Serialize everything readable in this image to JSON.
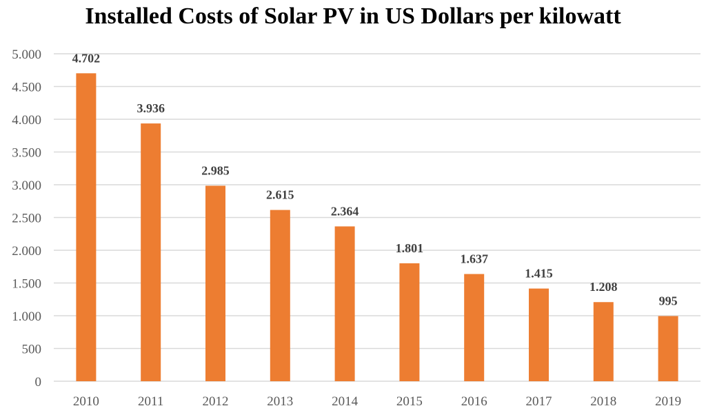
{
  "chart_data": {
    "type": "bar",
    "title": "Installed Costs of Solar PV in US Dollars per kilowatt",
    "categories": [
      "2010",
      "2011",
      "2012",
      "2013",
      "2014",
      "2015",
      "2016",
      "2017",
      "2018",
      "2019"
    ],
    "values": [
      4702,
      3936,
      2985,
      2615,
      2364,
      1801,
      1637,
      1415,
      1208,
      995
    ],
    "data_labels": [
      "4.702",
      "3.936",
      "2.985",
      "2.615",
      "2.364",
      "1.801",
      "1.637",
      "1.415",
      "1.208",
      "995"
    ],
    "yticks": [
      0,
      500,
      1000,
      1500,
      2000,
      2500,
      3000,
      3500,
      4000,
      4500,
      5000
    ],
    "ytick_labels": [
      "0",
      "500",
      "1.000",
      "1.500",
      "2.000",
      "2.500",
      "3.000",
      "3.500",
      "4.000",
      "4.500",
      "5.000"
    ],
    "xlabel": "",
    "ylabel": "",
    "ylim": [
      0,
      5000
    ],
    "grid": true,
    "legend": "none",
    "bar_color": "#ED7D31",
    "grid_color": "#D9D9D9"
  }
}
